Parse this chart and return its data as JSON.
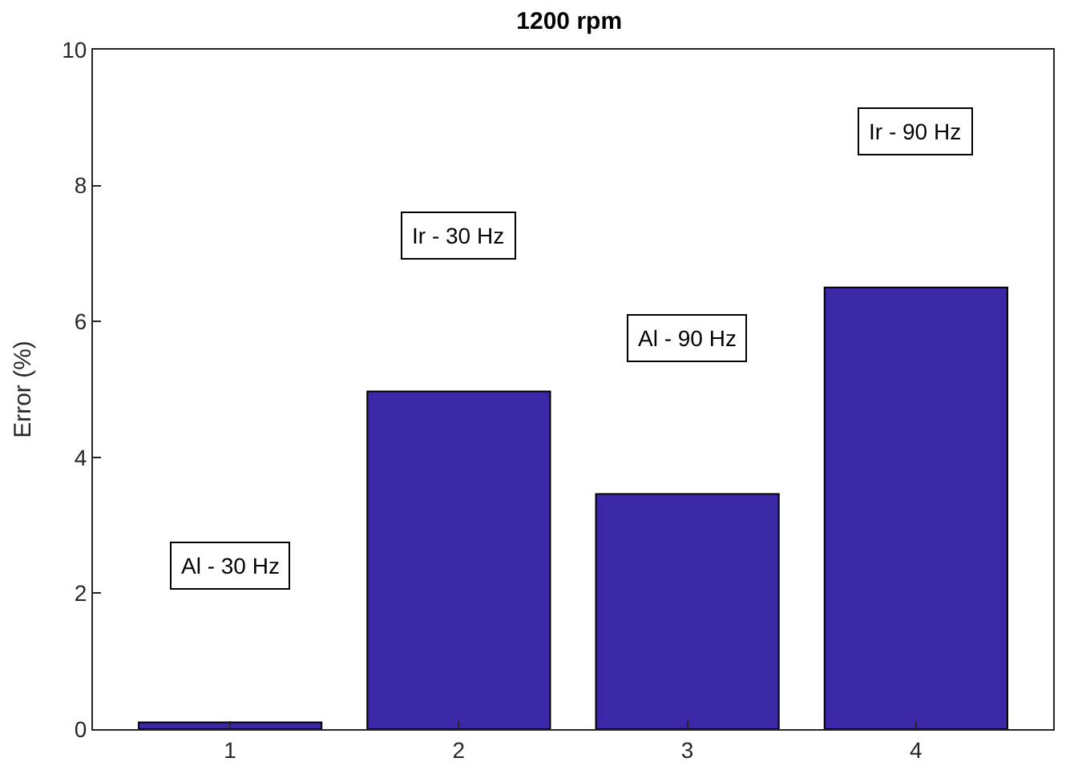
{
  "chart_data": {
    "type": "bar",
    "title": "1200 rpm",
    "ylabel": "Error (%)",
    "categories": [
      "1",
      "2",
      "3",
      "4"
    ],
    "values": [
      0.1,
      4.97,
      3.46,
      6.5
    ],
    "color": "#3a28a6",
    "ylim": [
      0,
      10
    ],
    "yticks": [
      0,
      2,
      4,
      6,
      8,
      10
    ],
    "annotations": [
      "Al - 30 Hz",
      "Ir - 30 Hz",
      "Al - 90 Hz",
      "Ir - 90 Hz"
    ]
  }
}
